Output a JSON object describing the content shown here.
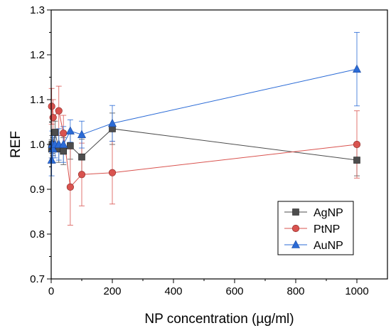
{
  "chart_data": {
    "type": "line",
    "xlabel": "NP concentration (µg/ml)",
    "ylabel": "REF",
    "xlim": [
      0,
      1100
    ],
    "ylim": [
      0.7,
      1.3
    ],
    "x_ticks": [
      0,
      200,
      400,
      600,
      800,
      1000
    ],
    "y_ticks": [
      0.7,
      0.8,
      0.9,
      1.0,
      1.1,
      1.2,
      1.3
    ],
    "x_tick_labels": [
      "0",
      "200",
      "400",
      "600",
      "800",
      "1000"
    ],
    "y_tick_labels": [
      "0.7",
      "0.8",
      "0.9",
      "1.0",
      "1.1",
      "1.2",
      "1.3"
    ],
    "grid": false,
    "legend_position": "bottom-right",
    "series": [
      {
        "name": "AgNP",
        "color": "#4d4d4d",
        "marker": "square",
        "points": [
          {
            "x": 1.56,
            "y": 0.99,
            "err": 0.02
          },
          {
            "x": 3.13,
            "y": 1.0,
            "err": 0.02
          },
          {
            "x": 6.25,
            "y": 0.995,
            "err": 0.02
          },
          {
            "x": 12.5,
            "y": 1.027,
            "err": 0.025
          },
          {
            "x": 25,
            "y": 0.99,
            "err": 0.03
          },
          {
            "x": 40,
            "y": 0.985,
            "err": 0.03
          },
          {
            "x": 62.5,
            "y": 0.997,
            "err": 0.03
          },
          {
            "x": 100,
            "y": 0.972,
            "err": 0.04
          },
          {
            "x": 200,
            "y": 1.035,
            "err": 0.035
          },
          {
            "x": 1000,
            "y": 0.965,
            "err": 0.035
          }
        ]
      },
      {
        "name": "PtNP",
        "color": "#d9534f",
        "marker": "circle",
        "points": [
          {
            "x": 1.56,
            "y": 1.085,
            "err": 0.04
          },
          {
            "x": 6.25,
            "y": 1.06,
            "err": 0.04
          },
          {
            "x": 25,
            "y": 1.075,
            "err": 0.055
          },
          {
            "x": 40,
            "y": 1.025,
            "err": 0.04
          },
          {
            "x": 62.5,
            "y": 0.905,
            "err": 0.085
          },
          {
            "x": 100,
            "y": 0.933,
            "err": 0.07
          },
          {
            "x": 200,
            "y": 0.937,
            "err": 0.07
          },
          {
            "x": 1000,
            "y": 1.0,
            "err": 0.075
          }
        ]
      },
      {
        "name": "AuNP",
        "color": "#2b6bd6",
        "marker": "triangle",
        "points": [
          {
            "x": 1.56,
            "y": 0.965,
            "err": 0.035
          },
          {
            "x": 3.13,
            "y": 1.0,
            "err": 0.03
          },
          {
            "x": 6.25,
            "y": 0.99,
            "err": 0.03
          },
          {
            "x": 12.5,
            "y": 1.0,
            "err": 0.03
          },
          {
            "x": 25,
            "y": 1.0,
            "err": 0.035
          },
          {
            "x": 40,
            "y": 1.0,
            "err": 0.04
          },
          {
            "x": 62.5,
            "y": 1.03,
            "err": 0.025
          },
          {
            "x": 100,
            "y": 1.022,
            "err": 0.03
          },
          {
            "x": 200,
            "y": 1.047,
            "err": 0.04
          },
          {
            "x": 1000,
            "y": 1.168,
            "err": 0.082
          }
        ]
      }
    ]
  }
}
